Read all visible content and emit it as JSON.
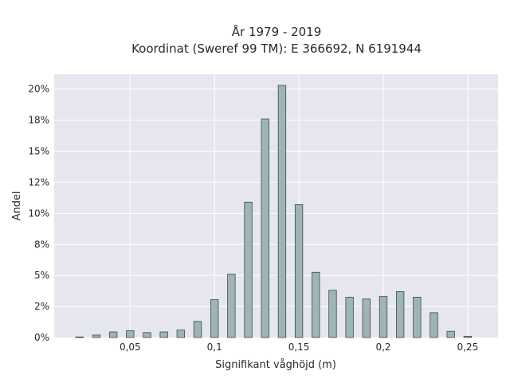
{
  "chart_data": {
    "type": "bar",
    "title": "År 1979 - 2019",
    "subtitle": "Koordinat (Sweref 99 TM): E 366692, N 6191944",
    "xlabel": "Signifikant våghöjd (m)",
    "ylabel": "Andel",
    "x_ticks": [
      {
        "value": 0.05,
        "label": "0,05"
      },
      {
        "value": 0.1,
        "label": "0,1"
      },
      {
        "value": 0.15,
        "label": "0,15"
      },
      {
        "value": 0.2,
        "label": "0,2"
      },
      {
        "value": 0.25,
        "label": "0,25"
      }
    ],
    "y_ticks": [
      {
        "value": 0,
        "label": "0%"
      },
      {
        "value": 2.5,
        "label": "2%"
      },
      {
        "value": 5,
        "label": "5%"
      },
      {
        "value": 7.5,
        "label": "8%"
      },
      {
        "value": 10,
        "label": "10%"
      },
      {
        "value": 12.5,
        "label": "12%"
      },
      {
        "value": 15,
        "label": "15%"
      },
      {
        "value": 17.5,
        "label": "18%"
      },
      {
        "value": 20,
        "label": "20%"
      }
    ],
    "xlim": [
      0.005,
      0.268
    ],
    "ylim": [
      0,
      21.2
    ],
    "bar_width": 0.0045,
    "x": [
      0.02,
      0.03,
      0.04,
      0.05,
      0.06,
      0.07,
      0.08,
      0.09,
      0.1,
      0.11,
      0.12,
      0.13,
      0.14,
      0.15,
      0.16,
      0.17,
      0.18,
      0.19,
      0.2,
      0.21,
      0.22,
      0.23,
      0.24,
      0.25
    ],
    "values": [
      0.05,
      0.2,
      0.45,
      0.55,
      0.4,
      0.45,
      0.6,
      1.3,
      3.05,
      5.1,
      10.9,
      17.6,
      20.3,
      10.7,
      5.25,
      3.8,
      3.25,
      3.1,
      3.3,
      3.7,
      3.25,
      2.0,
      0.5,
      0.1
    ],
    "grid": true,
    "colors": {
      "bar_fill": "#9fb5b4",
      "bar_stroke": "#3c4a4a",
      "plot_bg": "#e6e6ef",
      "grid": "#ffffff"
    }
  }
}
